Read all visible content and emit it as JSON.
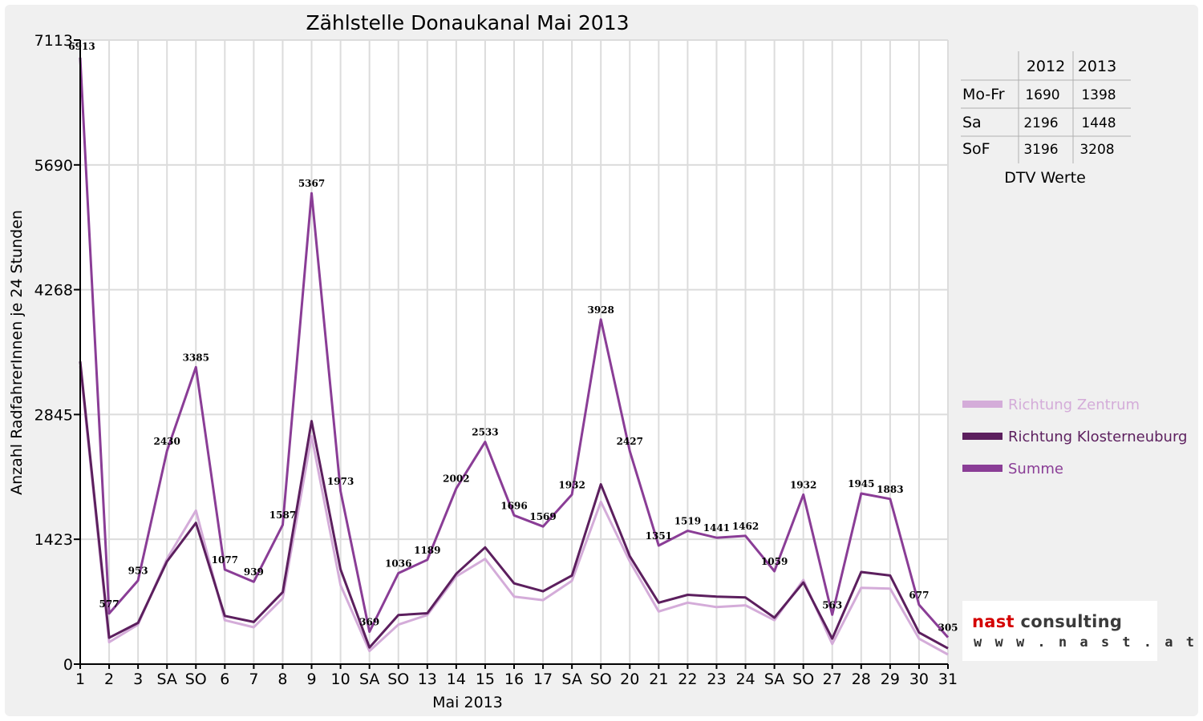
{
  "logo": {
    "word1": "nast",
    "word2": "consulting",
    "url": "w w w . n a s t . a t"
  },
  "dtv_table": {
    "caption": "DTV Werte",
    "headers": [
      "",
      "2012",
      "2013"
    ],
    "rows": [
      {
        "label": "Mo-Fr",
        "v2012": "1690",
        "v2013": "1398"
      },
      {
        "label": "Sa",
        "v2012": "2196",
        "v2013": "1448"
      },
      {
        "label": "SoF",
        "v2012": "3196",
        "v2013": "3208"
      }
    ]
  },
  "colors": {
    "zentrum": "#d4acd9",
    "kloster": "#5c1f5e",
    "summe": "#8a3d96",
    "holiday": "#ff0000",
    "grid": "#dcdcdc"
  },
  "chart_data": {
    "type": "line",
    "title": "Zählstelle Donaukanal Mai 2013",
    "xlabel": "Mai 2013",
    "ylabel": "Anzahl RadfahrerInnen je 24 Stunden",
    "ylim": [
      0,
      7113
    ],
    "yticks": [
      0,
      1423,
      2845,
      4268,
      5690,
      7113
    ],
    "grid": true,
    "legend_position": "right",
    "categories": [
      "1",
      "2",
      "3",
      "SA",
      "SO",
      "6",
      "7",
      "8",
      "9",
      "10",
      "SA",
      "SO",
      "13",
      "14",
      "15",
      "16",
      "17",
      "SA",
      "SO",
      "20",
      "21",
      "22",
      "23",
      "24",
      "SA",
      "SO",
      "27",
      "28",
      "29",
      "30",
      "31"
    ],
    "holiday_indices": [
      0,
      4,
      8,
      11,
      18,
      19,
      25,
      29
    ],
    "series": [
      {
        "name": "Richtung Zentrum",
        "color": "#d4acd9",
        "values": [
          3400,
          250,
          450,
          1200,
          1750,
          500,
          420,
          750,
          2600,
          900,
          150,
          450,
          560,
          1000,
          1200,
          770,
          730,
          950,
          1850,
          1170,
          600,
          700,
          650,
          670,
          500,
          960,
          230,
          870,
          860,
          290,
          110
        ]
      },
      {
        "name": "Richtung Klosterneuburg",
        "color": "#5c1f5e",
        "values": [
          3450,
          300,
          470,
          1170,
          1610,
          550,
          480,
          820,
          2770,
          1080,
          190,
          560,
          580,
          1030,
          1330,
          920,
          830,
          1010,
          2050,
          1230,
          700,
          790,
          770,
          760,
          530,
          930,
          290,
          1050,
          1010,
          360,
          180
        ]
      },
      {
        "name": "Summe",
        "color": "#8a3d96",
        "values": [
          6913,
          577,
          953,
          2430,
          3385,
          1077,
          939,
          1587,
          5367,
          1973,
          369,
          1036,
          1189,
          2002,
          2533,
          1696,
          1569,
          1932,
          3928,
          2427,
          1351,
          1519,
          1441,
          1462,
          1059,
          1932,
          563,
          1945,
          1883,
          677,
          305
        ]
      }
    ],
    "data_labels": [
      "6913",
      "577",
      "953",
      "2430",
      "3385",
      "1077",
      "939",
      "1587",
      "5367",
      "1973",
      "369",
      "1036",
      "1189",
      "2002",
      "2533",
      "1696",
      "1569",
      "1932",
      "3928",
      "2427",
      "1351",
      "1519",
      "1441",
      "1462",
      "1059",
      "1932",
      "563",
      "1945",
      "1883",
      "677",
      "305"
    ]
  }
}
